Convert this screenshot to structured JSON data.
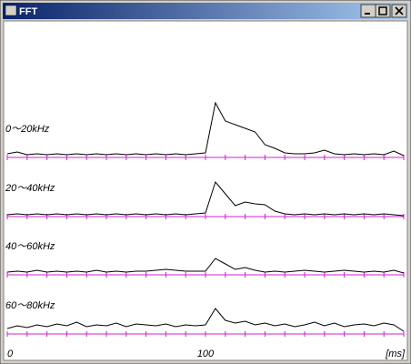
{
  "window": {
    "title": "FFT"
  },
  "chart_data": [
    {
      "type": "line",
      "title": "0～20kHz",
      "color": "#000000",
      "axis_color": "#d020d0",
      "x": [
        0,
        5,
        10,
        15,
        20,
        25,
        30,
        35,
        40,
        45,
        50,
        55,
        60,
        65,
        70,
        75,
        80,
        85,
        90,
        95,
        100,
        105,
        110,
        115,
        120,
        125,
        130,
        135,
        140,
        145,
        150,
        155,
        160,
        165,
        170,
        175,
        180,
        185,
        190,
        195,
        200
      ],
      "values": [
        4,
        6,
        3,
        4,
        3,
        4,
        3,
        4,
        3,
        4,
        3,
        4,
        3,
        4,
        3,
        4,
        3,
        4,
        3,
        4,
        5,
        60,
        40,
        36,
        32,
        28,
        14,
        10,
        5,
        4,
        4,
        5,
        8,
        4,
        3,
        4,
        3,
        4,
        3,
        7,
        2
      ],
      "xlim": [
        0,
        200
      ],
      "ylim": [
        0,
        70
      ],
      "xticks": [
        0,
        10,
        20,
        30,
        40,
        50,
        60,
        70,
        80,
        90,
        100,
        110,
        120,
        130,
        140,
        150,
        160,
        170,
        180,
        190,
        200
      ]
    },
    {
      "type": "line",
      "title": "20～40kHz",
      "color": "#000000",
      "axis_color": "#d020d0",
      "x": [
        0,
        5,
        10,
        15,
        20,
        25,
        30,
        35,
        40,
        45,
        50,
        55,
        60,
        65,
        70,
        75,
        80,
        85,
        90,
        95,
        100,
        105,
        110,
        115,
        120,
        125,
        130,
        135,
        140,
        145,
        150,
        155,
        160,
        165,
        170,
        175,
        180,
        185,
        190,
        195,
        200
      ],
      "values": [
        2,
        3,
        2,
        3,
        2,
        3,
        2,
        3,
        2,
        3,
        2,
        3,
        2,
        3,
        2,
        3,
        2,
        3,
        2,
        3,
        4,
        38,
        25,
        12,
        16,
        14,
        13,
        6,
        3,
        2,
        3,
        2,
        3,
        2,
        3,
        2,
        3,
        2,
        3,
        2,
        1
      ],
      "xlim": [
        0,
        200
      ],
      "ylim": [
        0,
        70
      ],
      "xticks": [
        0,
        10,
        20,
        30,
        40,
        50,
        60,
        70,
        80,
        90,
        100,
        110,
        120,
        130,
        140,
        150,
        160,
        170,
        180,
        190,
        200
      ]
    },
    {
      "type": "line",
      "title": "40～60kHz",
      "color": "#000000",
      "axis_color": "#d020d0",
      "x": [
        0,
        5,
        10,
        15,
        20,
        25,
        30,
        35,
        40,
        45,
        50,
        55,
        60,
        65,
        70,
        75,
        80,
        85,
        90,
        95,
        100,
        105,
        110,
        115,
        120,
        125,
        130,
        135,
        140,
        145,
        150,
        155,
        160,
        165,
        170,
        175,
        180,
        185,
        190,
        195,
        200
      ],
      "values": [
        3,
        4,
        3,
        5,
        3,
        4,
        3,
        4,
        3,
        5,
        3,
        4,
        3,
        4,
        4,
        5,
        6,
        5,
        4,
        4,
        4,
        18,
        12,
        6,
        8,
        5,
        3,
        4,
        3,
        4,
        5,
        4,
        3,
        4,
        5,
        4,
        3,
        4,
        3,
        5,
        2
      ],
      "xlim": [
        0,
        200
      ],
      "ylim": [
        0,
        70
      ],
      "xticks": [
        0,
        10,
        20,
        30,
        40,
        50,
        60,
        70,
        80,
        90,
        100,
        110,
        120,
        130,
        140,
        150,
        160,
        170,
        180,
        190,
        200
      ]
    },
    {
      "type": "line",
      "title": "60～80kHz",
      "color": "#000000",
      "axis_color": "#d020d0",
      "x": [
        0,
        5,
        10,
        15,
        20,
        25,
        30,
        35,
        40,
        45,
        50,
        55,
        60,
        65,
        70,
        75,
        80,
        85,
        90,
        95,
        100,
        105,
        110,
        115,
        120,
        125,
        130,
        135,
        140,
        145,
        150,
        155,
        160,
        165,
        170,
        175,
        180,
        185,
        190,
        195,
        200
      ],
      "values": [
        6,
        9,
        7,
        10,
        8,
        11,
        9,
        13,
        8,
        10,
        9,
        12,
        8,
        11,
        10,
        9,
        11,
        8,
        10,
        9,
        10,
        28,
        15,
        12,
        14,
        10,
        12,
        9,
        11,
        8,
        10,
        13,
        9,
        12,
        8,
        10,
        11,
        9,
        12,
        10,
        3
      ],
      "xlim": [
        0,
        200
      ],
      "ylim": [
        0,
        70
      ],
      "xticks": [
        0,
        10,
        20,
        30,
        40,
        50,
        60,
        70,
        80,
        90,
        100,
        110,
        120,
        130,
        140,
        150,
        160,
        170,
        180,
        190,
        200
      ]
    }
  ],
  "x_axis": {
    "xlim": [
      0,
      200
    ],
    "xticks": [
      0,
      100
    ],
    "unit": "[ms]"
  }
}
